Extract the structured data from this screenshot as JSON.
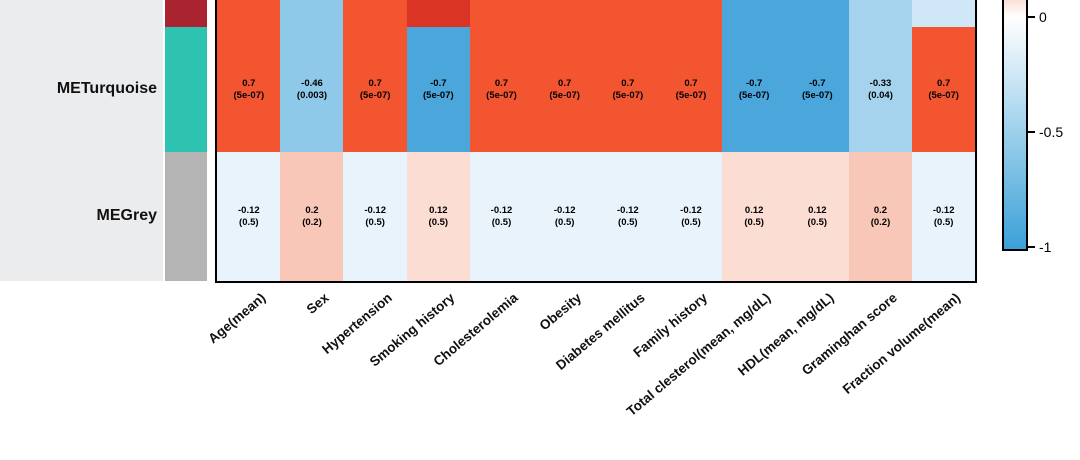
{
  "figure": {
    "background": "#ffffff",
    "left_panel_color": "#ebeced"
  },
  "chart_data": {
    "type": "heatmap",
    "description": "Module-trait correlation heatmap; each cell shows correlation coefficient and (p-value)",
    "scale_range": [
      -1,
      1
    ],
    "columns": [
      "Age(mean)",
      "Sex",
      "Hypertension",
      "Smoking history",
      "Cholesterolemia",
      "Obesity",
      "Diabetes mellitus",
      "Family history",
      "Total clesterol(mean, mg/dL)",
      "HDL(mean, mg/dL)",
      "Graminghan score",
      "Fraction volume(mean)"
    ],
    "partial_top_row": {
      "module_color": "#a92430",
      "cell_colors": [
        "#f45531",
        "#8fc9ea",
        "#f45531",
        "#da3424",
        "#f45531",
        "#f45531",
        "#f45531",
        "#f45531",
        "#4ba6db",
        "#4ba6db",
        "#a5d3ee",
        "#cfe7f6"
      ]
    },
    "rows": [
      {
        "label": "METurquoise",
        "module_color": "#2ec3b1",
        "cells": [
          {
            "value": "0.7",
            "p": "(5e-07)"
          },
          {
            "value": "-0.46",
            "p": "(0.003)"
          },
          {
            "value": "0.7",
            "p": "(5e-07)"
          },
          {
            "value": "-0.7",
            "p": "(5e-07)"
          },
          {
            "value": "0.7",
            "p": "(5e-07)"
          },
          {
            "value": "0.7",
            "p": "(5e-07)"
          },
          {
            "value": "0.7",
            "p": "(5e-07)"
          },
          {
            "value": "0.7",
            "p": "(5e-07)"
          },
          {
            "value": "-0.7",
            "p": "(5e-07)"
          },
          {
            "value": "-0.7",
            "p": "(5e-07)"
          },
          {
            "value": "-0.33",
            "p": "(0.04)"
          },
          {
            "value": "0.7",
            "p": "(5e-07)"
          }
        ]
      },
      {
        "label": "MEGrey",
        "module_color": "#b4b4b4",
        "cells": [
          {
            "value": "-0.12",
            "p": "(0.5)"
          },
          {
            "value": "0.2",
            "p": "(0.2)"
          },
          {
            "value": "-0.12",
            "p": "(0.5)"
          },
          {
            "value": "0.12",
            "p": "(0.5)"
          },
          {
            "value": "-0.12",
            "p": "(0.5)"
          },
          {
            "value": "-0.12",
            "p": "(0.5)"
          },
          {
            "value": "-0.12",
            "p": "(0.5)"
          },
          {
            "value": "-0.12",
            "p": "(0.5)"
          },
          {
            "value": "0.12",
            "p": "(0.5)"
          },
          {
            "value": "0.12",
            "p": "(0.5)"
          },
          {
            "value": "0.2",
            "p": "(0.2)"
          },
          {
            "value": "-0.12",
            "p": "(0.5)"
          }
        ]
      }
    ],
    "value_colors": {
      "0.7": "#f45531",
      "-0.7": "#4ba6db",
      "-0.46": "#8fc9ea",
      "-0.33": "#a5d3ee",
      "-0.12": "#e8f3fb",
      "0.2": "#f8c7b8",
      "0.12": "#fbddd3"
    },
    "colorbar": {
      "ticks": [
        {
          "label": "0",
          "value": 0
        },
        {
          "label": "-0.5",
          "value": -0.5
        },
        {
          "label": "-1",
          "value": -1
        }
      ],
      "gradient": [
        {
          "pos": "0%",
          "color": "#fbe0d8"
        },
        {
          "pos": "7%",
          "color": "#ffffff"
        },
        {
          "pos": "100%",
          "color": "#3ba0d8"
        }
      ]
    }
  }
}
